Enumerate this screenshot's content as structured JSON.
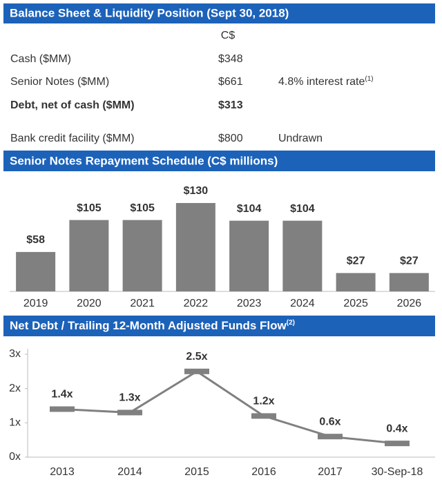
{
  "balance_sheet": {
    "title": "Balance Sheet & Liquidity Position (Sept 30, 2018)",
    "column_header": "C$",
    "rows": [
      {
        "label": "Cash ($MM)",
        "value": "$348"
      },
      {
        "label": "Senior Notes ($MM)",
        "value": "$661",
        "note": "4.8% interest rate",
        "note_ref": "(1)"
      },
      {
        "label": "Debt, net of cash ($MM)",
        "value": "$313",
        "bold": true
      },
      {
        "label": "Bank credit facility ($MM)",
        "value": "$800",
        "note": "Undrawn"
      }
    ]
  },
  "chart_data": [
    {
      "type": "bar",
      "title": "Senior Notes Repayment Schedule (C$ millions)",
      "categories": [
        "2019",
        "2020",
        "2021",
        "2022",
        "2023",
        "2024",
        "2025",
        "2026"
      ],
      "values": [
        58,
        105,
        105,
        130,
        104,
        104,
        27,
        27
      ],
      "value_labels": [
        "$58",
        "$105",
        "$105",
        "$130",
        "$104",
        "$104",
        "$27",
        "$27"
      ],
      "color": "#808080"
    },
    {
      "type": "line",
      "title": "Net Debt / Trailing 12-Month Adjusted Funds Flow",
      "title_note": "(2)",
      "categories": [
        "2013",
        "2014",
        "2015",
        "2016",
        "2017",
        "30-Sep-18"
      ],
      "values": [
        1.4,
        1.3,
        2.5,
        1.2,
        0.6,
        0.4
      ],
      "value_labels": [
        "1.4x",
        "1.3x",
        "2.5x",
        "1.2x",
        "0.6x",
        "0.4x"
      ],
      "color": "#808080",
      "ylim": [
        0,
        3
      ],
      "yticks": [
        {
          "value": 0,
          "label": "0x"
        },
        {
          "value": 1,
          "label": "1x"
        },
        {
          "value": 2,
          "label": "2x"
        },
        {
          "value": 3,
          "label": "3x"
        }
      ]
    }
  ]
}
